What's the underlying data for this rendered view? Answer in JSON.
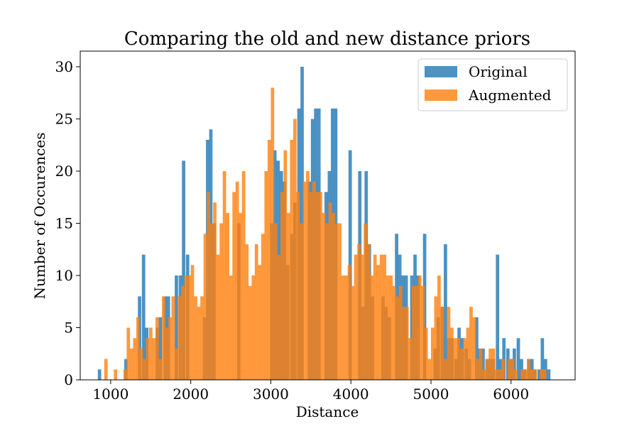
{
  "chart_data": {
    "type": "bar",
    "title": "Comparing the old and new distance priors",
    "xlabel": "Distance",
    "ylabel": "Number of Occurences",
    "xlim": [
      620,
      6800
    ],
    "ylim": [
      0,
      31.5
    ],
    "xticks": [
      1000,
      2000,
      3000,
      4000,
      5000,
      6000
    ],
    "yticks": [
      0,
      5,
      10,
      15,
      20,
      25,
      30
    ],
    "bin_width": 42,
    "grid": false,
    "legend_position": "top-right",
    "series": [
      {
        "name": "Original",
        "color": "#1f77b4",
        "opacity": 0.8,
        "bin_starts": [
          840,
          1170,
          1340,
          1390,
          1430,
          1560,
          1600,
          1660,
          1700,
          1800,
          1850,
          1890,
          1940,
          2150,
          2190,
          2230,
          2270,
          2580,
          2990,
          3030,
          3070,
          3110,
          3150,
          3190,
          3240,
          3280,
          3330,
          3370,
          3460,
          3500,
          3540,
          3580,
          3670,
          3710,
          3750,
          3790,
          3970,
          4090,
          4130,
          4170,
          4210,
          4250,
          4380,
          4420,
          4460,
          4550,
          4590,
          4630,
          4670,
          4740,
          4780,
          4820,
          4900,
          5030,
          5070,
          5120,
          5160,
          5200,
          5240,
          5290,
          5330,
          5370,
          5420,
          5460,
          5550,
          5590,
          5630,
          5680,
          5720,
          5760,
          5810,
          5850,
          5890,
          5940,
          5980,
          6020,
          6070,
          6110,
          6150,
          6200,
          6240,
          6280,
          6330,
          6370,
          6410,
          6450
        ],
        "bin_values": [
          1,
          2,
          8,
          12,
          5,
          5,
          6,
          8,
          8,
          10,
          10,
          21,
          12,
          6,
          23,
          24,
          15,
          15,
          15,
          22,
          21,
          20,
          19,
          11,
          14,
          17,
          26,
          30,
          19,
          25,
          26,
          26,
          18,
          20,
          26,
          26,
          22,
          20,
          7,
          20,
          13,
          8,
          8,
          7,
          6,
          14,
          12,
          10,
          10,
          10,
          12,
          10,
          14,
          3,
          6,
          7,
          13,
          4,
          4,
          2,
          5,
          4,
          3,
          2,
          6,
          3,
          3,
          2,
          2,
          2,
          12,
          2,
          4,
          3,
          2,
          3,
          4,
          2,
          1,
          2,
          2,
          1,
          1,
          4,
          2,
          1
        ]
      },
      {
        "name": "Augmented",
        "color": "#ff7f0e",
        "opacity": 0.8,
        "bin_starts": [
          880,
          920,
          960,
          1000,
          1040,
          1080,
          1120,
          1160,
          1200,
          1240,
          1280,
          1320,
          1360,
          1400,
          1440,
          1480,
          1520,
          1560,
          1600,
          1640,
          1680,
          1720,
          1760,
          1800,
          1840,
          1880,
          1920,
          1960,
          2000,
          2040,
          2080,
          2120,
          2160,
          2200,
          2240,
          2280,
          2320,
          2360,
          2400,
          2440,
          2480,
          2520,
          2560,
          2600,
          2640,
          2680,
          2720,
          2760,
          2800,
          2840,
          2880,
          2920,
          2960,
          3000,
          3040,
          3080,
          3120,
          3160,
          3200,
          3240,
          3280,
          3320,
          3360,
          3400,
          3440,
          3480,
          3520,
          3560,
          3600,
          3640,
          3680,
          3720,
          3760,
          3800,
          3840,
          3880,
          3920,
          3960,
          4000,
          4040,
          4080,
          4120,
          4160,
          4200,
          4240,
          4280,
          4320,
          4360,
          4400,
          4440,
          4480,
          4520,
          4560,
          4600,
          4640,
          4680,
          4720,
          4760,
          4800,
          4840,
          4880,
          4920,
          4960,
          5000,
          5040,
          5080,
          5120,
          5160,
          5200,
          5240,
          5280,
          5320,
          5360,
          5400,
          5440,
          5480,
          5520,
          5560,
          5600,
          5640,
          5680,
          5720,
          5760,
          5800,
          5840,
          5880,
          5920,
          5960,
          6000,
          6040,
          6080,
          6120,
          6160,
          6200,
          6240,
          6280,
          6320,
          6360,
          6400,
          6440
        ],
        "bin_values": [
          0,
          2,
          0,
          0,
          1,
          0,
          0,
          1,
          5,
          3,
          4,
          6,
          3,
          2,
          4,
          5,
          4,
          6,
          2,
          8,
          5,
          6,
          8,
          3,
          8,
          9,
          10,
          10,
          11,
          8,
          7,
          8,
          14,
          18,
          15,
          17,
          12,
          15,
          20,
          16,
          10,
          18,
          19,
          16,
          20,
          13,
          9,
          10,
          13,
          11,
          14,
          20,
          23,
          28,
          15,
          12,
          18,
          22,
          16,
          23,
          25,
          18,
          15,
          19,
          20,
          18,
          19,
          18,
          18,
          16,
          15,
          17,
          16,
          15,
          15,
          10,
          10,
          11,
          9,
          12,
          13,
          12,
          15,
          13,
          10,
          12,
          11,
          12,
          12,
          10,
          10,
          9,
          8,
          9,
          7,
          7,
          4,
          9,
          9,
          10,
          9,
          5,
          2,
          5,
          8,
          10,
          7,
          2,
          7,
          5,
          4,
          4,
          3,
          4,
          5,
          7,
          6,
          2,
          3,
          1,
          2,
          3,
          3,
          1,
          1,
          2,
          0,
          2,
          2,
          1,
          0,
          1,
          1,
          2,
          1,
          1,
          0,
          1,
          1,
          0,
          1
        ]
      }
    ]
  }
}
